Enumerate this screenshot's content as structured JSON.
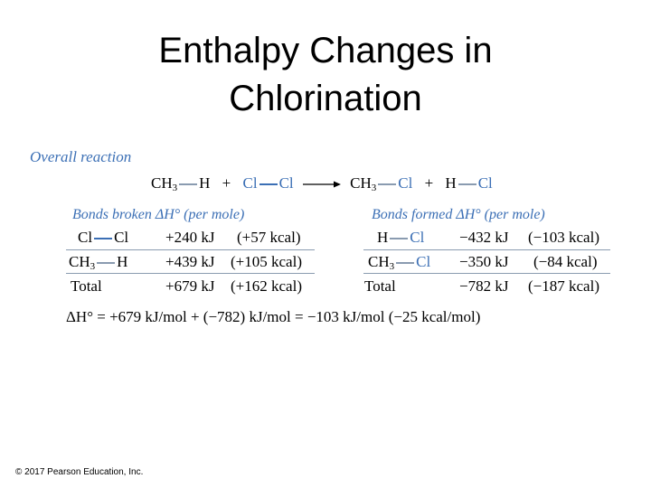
{
  "title_line1": "Enthalpy Changes in",
  "title_line2": "Chlorination",
  "overall_label": "Overall reaction",
  "reaction": {
    "r1_a": "CH",
    "r1_sub": "3",
    "r1_b": "H",
    "plus1": "+",
    "r2_a": "Cl",
    "r2_b": "Cl",
    "p1_a": "CH",
    "p1_sub": "3",
    "p1_b": "Cl",
    "plus2": "+",
    "p2_a": "H",
    "p2_b": "Cl"
  },
  "broken": {
    "header": "Bonds broken ΔH° (per mole)",
    "rows": [
      {
        "a": "Cl",
        "sub": "",
        "b": "Cl",
        "value": "+240 kJ",
        "kcal": "(+57 kcal)"
      },
      {
        "a": "CH",
        "sub": "3",
        "b": "H",
        "value": "+439 kJ",
        "kcal": "(+105 kcal)"
      }
    ],
    "total_label": "Total",
    "total_value": "+679 kJ",
    "total_kcal": "(+162 kcal)"
  },
  "formed": {
    "header": "Bonds formed ΔH° (per mole)",
    "rows": [
      {
        "a": "H",
        "sub": "",
        "b": "Cl",
        "value": "−432 kJ",
        "kcal": "(−103 kcal)"
      },
      {
        "a": "CH",
        "sub": "3",
        "b": "Cl",
        "value": "−350 kJ",
        "kcal": "(−84 kcal)"
      }
    ],
    "total_label": "Total",
    "total_value": "−782 kJ",
    "total_kcal": "(−187 kcal)"
  },
  "equation": "ΔH° = +679 kJ/mol + (−782) kJ/mol = −103 kJ/mol (−25 kcal/mol)",
  "copyright": "© 2017 Pearson Education, Inc.",
  "colors": {
    "accent_blue": "#3b6fb5",
    "rule_gray": "#8a9bb0"
  }
}
